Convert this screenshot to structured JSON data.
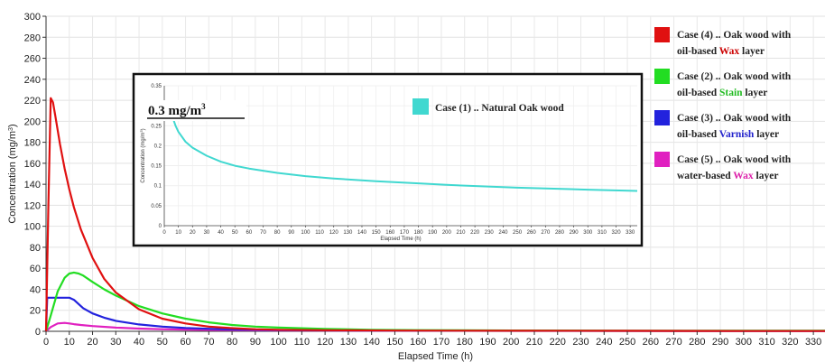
{
  "chart_data": [
    {
      "type": "line",
      "xlabel": "Elapsed Time (h)",
      "ylabel": "Concentration (mg/m^3)",
      "xlim": [
        0,
        335
      ],
      "ylim": [
        0,
        300
      ],
      "xticks": [
        0,
        10,
        20,
        30,
        40,
        50,
        60,
        70,
        80,
        90,
        100,
        110,
        120,
        130,
        140,
        150,
        160,
        170,
        180,
        190,
        200,
        210,
        220,
        230,
        240,
        250,
        260,
        270,
        280,
        290,
        300,
        310,
        320,
        330
      ],
      "yticks": [
        0,
        20,
        40,
        60,
        80,
        100,
        120,
        140,
        160,
        180,
        200,
        220,
        240,
        260,
        280,
        300
      ],
      "grid": true,
      "legend_position": "right",
      "series": [
        {
          "name_parts": [
            "Case (4) .. Oak wood with",
            "oil-based ",
            "Wax",
            " layer"
          ],
          "color": "#e01010",
          "x": [
            0,
            1,
            2,
            3,
            4,
            6,
            8,
            10,
            12,
            15,
            20,
            25,
            30,
            40,
            50,
            60,
            70,
            80,
            90,
            100,
            120,
            150,
            200,
            250,
            300,
            335
          ],
          "y": [
            0,
            120,
            222,
            218,
            205,
            178,
            155,
            135,
            118,
            97,
            70,
            50,
            37,
            21,
            12,
            7.5,
            4.5,
            3,
            2,
            1.5,
            1,
            0.7,
            0.5,
            0.4,
            0.3,
            0.3
          ]
        },
        {
          "name_parts": [
            "Case (2) .. Oak wood with",
            "oil-based ",
            "Stain",
            " layer"
          ],
          "color": "#22dd22",
          "x": [
            0,
            2,
            5,
            8,
            10,
            12,
            14,
            16,
            20,
            25,
            30,
            40,
            50,
            60,
            70,
            80,
            90,
            100,
            120,
            140,
            160,
            200,
            250,
            335
          ],
          "y": [
            0,
            15,
            38,
            51,
            55,
            56,
            55,
            53,
            47,
            40,
            34,
            24,
            17,
            12,
            8.5,
            6,
            4.5,
            3.5,
            2.2,
            1.5,
            1.1,
            0.8,
            0.6,
            0.5
          ]
        },
        {
          "name_parts": [
            "Case (3) .. Oak wood with",
            "oil-based ",
            "Varnish",
            " layer"
          ],
          "color": "#2222dd",
          "x": [
            0,
            0.5,
            2,
            5,
            8,
            10,
            12,
            14,
            16,
            20,
            25,
            30,
            40,
            50,
            60,
            70,
            80,
            100,
            150,
            200,
            335
          ],
          "y": [
            0,
            32,
            32,
            32,
            32,
            32,
            30,
            26,
            22,
            17,
            13,
            10,
            6.5,
            4.5,
            3.2,
            2.4,
            1.8,
            1.2,
            0.6,
            0.4,
            0.3
          ]
        },
        {
          "name_parts": [
            "Case (5) .. Oak wood with",
            "water-based ",
            "Wax",
            " layer"
          ],
          "color": "#e020c0",
          "x": [
            0,
            2,
            5,
            8,
            10,
            12,
            15,
            20,
            30,
            40,
            50,
            60,
            70,
            80,
            100,
            150,
            335
          ],
          "y": [
            0,
            4,
            7.5,
            8,
            7.5,
            6.8,
            6,
            5,
            3.5,
            2.6,
            2,
            1.6,
            1.3,
            1.1,
            0.9,
            0.6,
            0.4
          ]
        }
      ],
      "legend_accent_colors": [
        "#cc0000",
        "#22bb22",
        "#2222cc",
        "#dd22aa"
      ]
    },
    {
      "type": "line",
      "role": "inset",
      "xlabel": "Elapsed Time (h)",
      "ylabel": "Concentration (mg/m^3)",
      "xlim": [
        0,
        335
      ],
      "ylim": [
        0,
        0.35
      ],
      "xticks": [
        0,
        10,
        20,
        30,
        40,
        50,
        60,
        70,
        80,
        90,
        100,
        110,
        120,
        130,
        140,
        150,
        160,
        170,
        180,
        190,
        200,
        210,
        220,
        230,
        240,
        250,
        260,
        270,
        280,
        290,
        300,
        310,
        320,
        330
      ],
      "yticks": [
        0,
        0.05,
        0.1,
        0.15,
        0.2,
        0.25,
        0.3,
        0.35
      ],
      "ytick_labels": [
        "0",
        "0.05",
        "0.1",
        "0.15",
        "0.2",
        "0.25",
        "0.3",
        "0.35"
      ],
      "grid": true,
      "annotation": "0.3 mg/m",
      "annotation_sup": "3",
      "series": [
        {
          "name": "Case (1) .. Natural Oak wood",
          "color": "#40d8d0",
          "x": [
            4,
            6,
            8,
            10,
            15,
            20,
            30,
            40,
            50,
            60,
            80,
            100,
            120,
            150,
            180,
            200,
            250,
            300,
            335
          ],
          "y": [
            0.3,
            0.27,
            0.25,
            0.235,
            0.21,
            0.195,
            0.175,
            0.16,
            0.15,
            0.143,
            0.132,
            0.124,
            0.118,
            0.111,
            0.106,
            0.102,
            0.095,
            0.09,
            0.087
          ]
        }
      ]
    }
  ]
}
